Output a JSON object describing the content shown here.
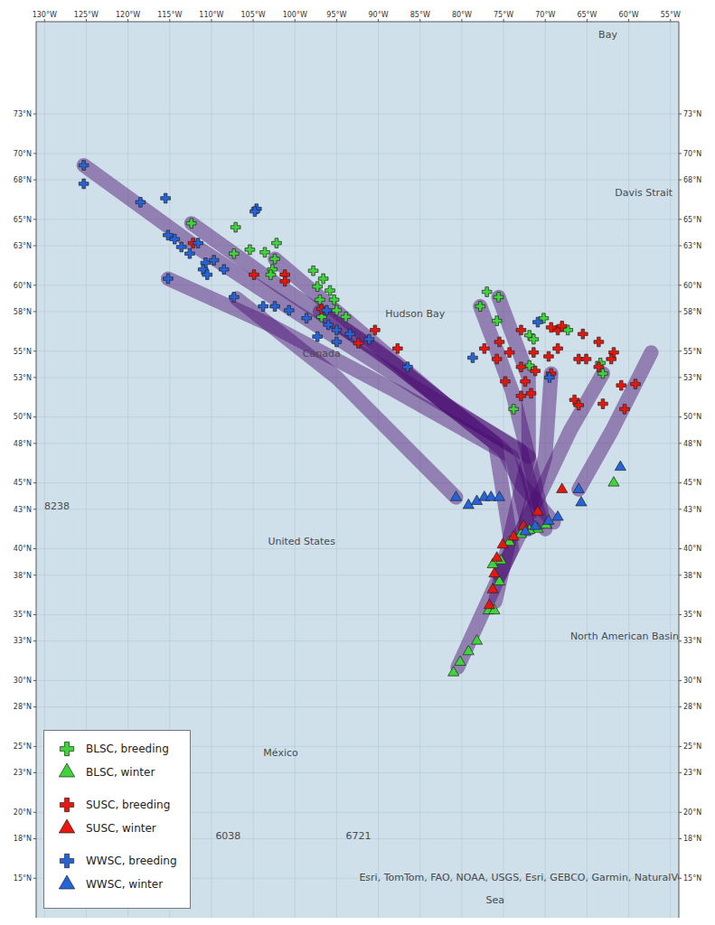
{
  "chart_data": {
    "type": "scatter",
    "grid": true,
    "legend": "lower left",
    "xlim": [
      -131,
      -54
    ],
    "xticks": [
      {
        "value": -130,
        "label": "130°W"
      },
      {
        "value": -125,
        "label": "125°W"
      },
      {
        "value": -120,
        "label": "120°W"
      },
      {
        "value": -115,
        "label": "115°W"
      },
      {
        "value": -110,
        "label": "110°W"
      },
      {
        "value": -105,
        "label": "105°W"
      },
      {
        "value": -100,
        "label": "100°W"
      },
      {
        "value": -95,
        "label": "95°W"
      },
      {
        "value": -90,
        "label": "90°W"
      },
      {
        "value": -85,
        "label": "85°W"
      },
      {
        "value": -80,
        "label": "80°W"
      },
      {
        "value": -75,
        "label": "75°W"
      },
      {
        "value": -70,
        "label": "70°W"
      },
      {
        "value": -65,
        "label": "65°W"
      },
      {
        "value": -60,
        "label": "60°W"
      },
      {
        "value": -55,
        "label": "55°W"
      }
    ],
    "ylim": [
      12,
      80
    ],
    "yticks": [
      {
        "value": 73,
        "label": "73°N"
      },
      {
        "value": 70,
        "label": "70°N"
      },
      {
        "value": 68,
        "label": "68°N"
      },
      {
        "value": 65,
        "label": "65°N"
      },
      {
        "value": 63,
        "label": "63°N"
      },
      {
        "value": 60,
        "label": "60°N"
      },
      {
        "value": 58,
        "label": "58°N"
      },
      {
        "value": 55,
        "label": "55°N"
      },
      {
        "value": 53,
        "label": "53°N"
      },
      {
        "value": 50,
        "label": "50°N"
      },
      {
        "value": 48,
        "label": "48°N"
      },
      {
        "value": 45,
        "label": "45°N"
      },
      {
        "value": 43,
        "label": "43°N"
      },
      {
        "value": 40,
        "label": "40°N"
      },
      {
        "value": 38,
        "label": "38°N"
      },
      {
        "value": 35,
        "label": "35°N"
      },
      {
        "value": 33,
        "label": "33°N"
      },
      {
        "value": 30,
        "label": "30°N"
      },
      {
        "value": 28,
        "label": "28°N"
      },
      {
        "value": 25,
        "label": "25°N"
      },
      {
        "value": 23,
        "label": "23°N"
      },
      {
        "value": 20,
        "label": "20°N"
      },
      {
        "value": 18,
        "label": "18°N"
      },
      {
        "value": 15,
        "label": "15°N"
      }
    ],
    "series": [
      {
        "name": "BLSC, breeding",
        "color": "#3fd43a",
        "marker": "cross",
        "x": [
          -112.4,
          -107.1,
          -107.3,
          -105.4,
          -103.6,
          -102.2,
          -102.4,
          -102.7,
          -102.9,
          -97.8,
          -96.6,
          -97.3,
          -95.8,
          -95.3,
          -97.0,
          -95.0,
          -96.8,
          -93.9,
          -77.0,
          -75.6,
          -77.8,
          -75.8,
          -70.2,
          -71.9,
          -71.4,
          -67.3,
          -71.9,
          -63.4,
          -63.1,
          -73.8
        ],
        "y": [
          64.7,
          64.4,
          62.4,
          62.7,
          62.5,
          63.2,
          62.0,
          61.2,
          60.8,
          61.1,
          60.5,
          59.9,
          59.6,
          58.9,
          58.9,
          58.1,
          57.6,
          57.6,
          59.5,
          59.1,
          58.4,
          57.3,
          57.5,
          56.2,
          55.9,
          56.6,
          53.9,
          54.1,
          53.3,
          50.6
        ]
      },
      {
        "name": "BLSC, winter",
        "color": "#3fd43a",
        "marker": "triangle",
        "x": [
          -61.8,
          -69.9,
          -70.9,
          -71.9,
          -72.9,
          -74.3,
          -75.3,
          -76.3,
          -75.5,
          -76.8,
          -76.1,
          -78.2,
          -79.2,
          -80.2,
          -81.0
        ],
        "y": [
          45.0,
          41.8,
          41.5,
          41.4,
          41.1,
          40.5,
          39.1,
          38.8,
          37.5,
          35.3,
          35.3,
          33.0,
          32.2,
          31.4,
          30.6
        ]
      },
      {
        "name": "SUSC, breeding",
        "color": "#e8160c",
        "marker": "cross",
        "x": [
          -112.2,
          -104.9,
          -101.2,
          -101.2,
          -96.8,
          -90.4,
          -92.4,
          -87.7,
          -77.3,
          -75.5,
          -72.9,
          -74.3,
          -75.8,
          -72.9,
          -71.4,
          -71.2,
          -69.6,
          -68.5,
          -65.5,
          -69.3,
          -72.4,
          -74.8,
          -72.9,
          -71.7,
          -66.0,
          -65.1,
          -63.6,
          -63.6,
          -61.8,
          -62.1,
          -60.9,
          -59.2,
          -66.5,
          -66.0,
          -63.1,
          -60.5,
          -68.5,
          -68.0,
          -69.3
        ],
        "y": [
          63.2,
          60.8,
          60.8,
          60.3,
          58.2,
          56.6,
          55.6,
          55.2,
          55.2,
          55.7,
          56.6,
          54.9,
          54.4,
          53.8,
          54.9,
          53.5,
          54.6,
          55.2,
          56.3,
          53.3,
          52.7,
          52.7,
          51.6,
          51.8,
          54.4,
          54.4,
          53.8,
          55.7,
          54.9,
          54.4,
          52.4,
          52.5,
          51.3,
          50.9,
          51.0,
          50.6,
          56.6,
          56.9,
          56.8
        ]
      },
      {
        "name": "SUSC, winter",
        "color": "#e8160c",
        "marker": "triangle",
        "x": [
          -68.0,
          -70.9,
          -72.6,
          -73.8,
          -75.1,
          -75.8,
          -76.1,
          -76.3,
          -76.7
        ],
        "y": [
          44.5,
          42.8,
          41.7,
          40.9,
          40.3,
          39.3,
          38.1,
          36.9,
          35.7
        ]
      },
      {
        "name": "WWSC, breeding",
        "color": "#2563d9",
        "marker": "cross",
        "x": [
          -125.3,
          -125.3,
          -118.5,
          -115.5,
          -104.6,
          -104.8,
          -114.4,
          -113.6,
          -112.6,
          -111.6,
          -115.2,
          -110.7,
          -109.7,
          -111.0,
          -110.5,
          -108.5,
          -115.2,
          -107.3,
          -103.8,
          -102.4,
          -100.7,
          -98.6,
          -96.2,
          -96.0,
          -97.3,
          -95.0,
          -95.0,
          -93.4,
          -91.1,
          -86.5,
          -78.7,
          -70.9,
          -69.5
        ],
        "y": [
          69.1,
          67.7,
          66.3,
          66.6,
          65.8,
          65.6,
          63.5,
          62.9,
          62.4,
          63.2,
          63.8,
          61.7,
          61.9,
          61.2,
          60.8,
          61.2,
          60.5,
          59.1,
          58.4,
          58.4,
          58.1,
          57.5,
          58.1,
          57.0,
          56.1,
          56.6,
          55.7,
          56.3,
          55.9,
          53.8,
          54.5,
          57.2,
          53.0
        ]
      },
      {
        "name": "WWSC, winter",
        "color": "#2563d9",
        "marker": "triangle",
        "x": [
          -80.7,
          -79.2,
          -78.2,
          -77.3,
          -76.5,
          -75.5,
          -66.0,
          -65.7,
          -61.0,
          -72.4,
          -71.2,
          -69.6,
          -68.5
        ],
        "y": [
          43.9,
          43.3,
          43.6,
          43.9,
          43.9,
          43.9,
          44.5,
          43.5,
          46.2,
          41.3,
          41.7,
          42.1,
          42.4
        ]
      }
    ],
    "tracks": {
      "color": "#4a0a72",
      "paths": [
        {
          "x": [
            -125.3,
            -112,
            -100,
            -85,
            -73,
            -70.5
          ],
          "y": [
            69.1,
            63,
            58,
            52,
            47.5,
            42
          ]
        },
        {
          "x": [
            -112.4,
            -102,
            -90,
            -76,
            -74,
            -80.5
          ],
          "y": [
            64.7,
            60,
            55,
            48,
            40,
            31
          ]
        },
        {
          "x": [
            -115.2,
            -103,
            -88,
            -74,
            -72
          ],
          "y": [
            60.5,
            57,
            52,
            47,
            41.5
          ]
        },
        {
          "x": [
            -102.4,
            -95,
            -82,
            -72,
            -76
          ],
          "y": [
            62,
            58,
            51,
            47,
            36
          ]
        },
        {
          "x": [
            -97,
            -88,
            -75,
            -73,
            -69
          ],
          "y": [
            58,
            54,
            47.5,
            45,
            42
          ]
        },
        {
          "x": [
            -107,
            -95,
            -80.7
          ],
          "y": [
            59,
            53,
            43.9
          ]
        },
        {
          "x": [
            -75.6,
            -72,
            -72,
            -70
          ],
          "y": [
            59.1,
            53,
            47,
            41.5
          ]
        },
        {
          "x": [
            -69.3,
            -70,
            -72.5
          ],
          "y": [
            53.3,
            47,
            41.7
          ]
        },
        {
          "x": [
            -63.1,
            -67,
            -70,
            -75.5
          ],
          "y": [
            53.3,
            49,
            45,
            38
          ]
        },
        {
          "x": [
            -57.3,
            -62,
            -66
          ],
          "y": [
            54.9,
            49,
            44.5
          ]
        },
        {
          "x": [
            -77.8,
            -74,
            -72
          ],
          "y": [
            58.4,
            52,
            47
          ]
        }
      ]
    },
    "annotations": [
      {
        "text": "Canada",
        "x": -96.8,
        "y": 54.8
      },
      {
        "text": "United States",
        "x": -99.2,
        "y": 40.5
      },
      {
        "text": "México",
        "x": -101.7,
        "y": 24.5
      },
      {
        "text": "Hudson Bay",
        "x": -85.6,
        "y": 57.8
      },
      {
        "text": "Davis Strait",
        "x": -58.2,
        "y": 67.0
      },
      {
        "text": "North American Basin",
        "x": -60.5,
        "y": 33.3
      },
      {
        "text": "Bay",
        "x": -62.5,
        "y": 79
      },
      {
        "text": "8238",
        "x": -128.5,
        "y": 43.2
      },
      {
        "text": "6038",
        "x": -108,
        "y": 18.2
      },
      {
        "text": "6721",
        "x": -92.4,
        "y": 18.2
      },
      {
        "text": "Esri, TomTom, FAO, NOAA, USGS, Esri, GEBCO, Garmin, NaturalVue",
        "x": -72.5,
        "y": 15
      },
      {
        "text": "Sea",
        "x": -76,
        "y": 13.3
      }
    ]
  }
}
